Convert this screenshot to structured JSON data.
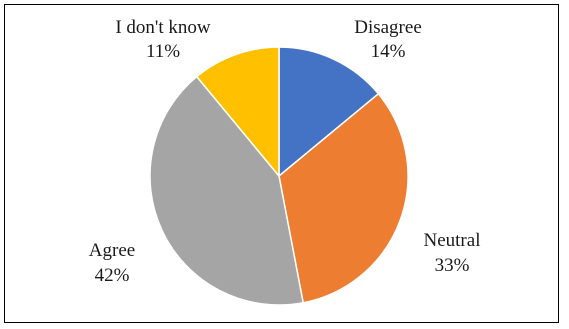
{
  "chart_data": {
    "type": "pie",
    "title": "",
    "slices": [
      {
        "label": "Disagree",
        "value": 14,
        "value_label": "14%",
        "color": "#4472C4"
      },
      {
        "label": "Neutral",
        "value": 33,
        "value_label": "33%",
        "color": "#ED7D31"
      },
      {
        "label": "Agree",
        "value": 42,
        "value_label": "42%",
        "color": "#A5A5A5"
      },
      {
        "label": "I don't know",
        "value": 11,
        "value_label": "11%",
        "color": "#FFC000"
      }
    ],
    "start_position": "12 o'clock",
    "direction": "clockwise",
    "legend": "none",
    "slice_border_color": "#ffffff"
  }
}
